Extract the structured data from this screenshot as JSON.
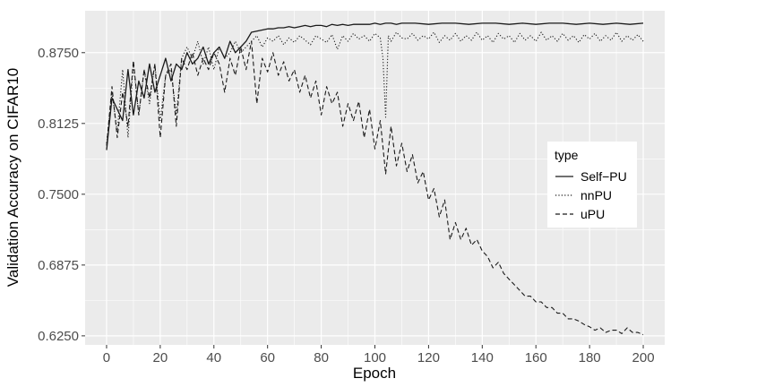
{
  "chart_data": {
    "type": "line",
    "xlabel": "Epoch",
    "ylabel": "Validation Accuracy on CIFAR10",
    "xlim": [
      -8,
      208
    ],
    "ylim": [
      0.617,
      0.912
    ],
    "x_ticks": [
      0,
      20,
      40,
      60,
      80,
      100,
      120,
      140,
      160,
      180,
      200
    ],
    "y_ticks": [
      0.625,
      0.6875,
      0.75,
      0.8125,
      0.875
    ],
    "y_tick_labels": [
      "0.6250",
      "0.6875",
      "0.7500",
      "0.8125",
      "0.8750"
    ],
    "grid": true,
    "legend": {
      "title": "type",
      "position": "right"
    },
    "series": [
      {
        "name": "Self−PU",
        "dash": "solid",
        "x": [
          0,
          2,
          4,
          6,
          8,
          10,
          12,
          14,
          16,
          18,
          20,
          22,
          24,
          26,
          28,
          30,
          32,
          34,
          36,
          38,
          40,
          42,
          44,
          46,
          48,
          50,
          52,
          54,
          56,
          58,
          60,
          62,
          64,
          66,
          68,
          70,
          72,
          74,
          76,
          78,
          80,
          82,
          84,
          86,
          88,
          90,
          92,
          94,
          96,
          98,
          100,
          102,
          104,
          106,
          108,
          110,
          115,
          120,
          125,
          130,
          135,
          140,
          145,
          150,
          155,
          160,
          165,
          170,
          175,
          180,
          185,
          190,
          195,
          200
        ],
        "y": [
          0.789,
          0.835,
          0.825,
          0.815,
          0.86,
          0.82,
          0.85,
          0.835,
          0.865,
          0.84,
          0.855,
          0.87,
          0.85,
          0.865,
          0.86,
          0.875,
          0.865,
          0.87,
          0.88,
          0.865,
          0.875,
          0.88,
          0.87,
          0.885,
          0.875,
          0.88,
          0.885,
          0.893,
          0.894,
          0.895,
          0.896,
          0.896,
          0.897,
          0.897,
          0.898,
          0.897,
          0.898,
          0.899,
          0.898,
          0.899,
          0.899,
          0.898,
          0.9,
          0.899,
          0.9,
          0.899,
          0.9,
          0.9,
          0.9,
          0.9,
          0.901,
          0.9,
          0.901,
          0.901,
          0.9,
          0.901,
          0.901,
          0.9,
          0.901,
          0.901,
          0.9,
          0.901,
          0.901,
          0.9,
          0.901,
          0.9,
          0.901,
          0.901,
          0.9,
          0.901,
          0.9,
          0.901,
          0.9,
          0.901
        ]
      },
      {
        "name": "nnPU",
        "dash": "dotted",
        "x": [
          0,
          2,
          4,
          6,
          8,
          10,
          12,
          14,
          16,
          18,
          20,
          22,
          24,
          26,
          28,
          30,
          32,
          34,
          36,
          38,
          40,
          42,
          44,
          46,
          48,
          50,
          52,
          54,
          56,
          58,
          60,
          62,
          64,
          66,
          68,
          70,
          72,
          74,
          76,
          78,
          80,
          82,
          84,
          86,
          88,
          90,
          92,
          94,
          96,
          98,
          100,
          102,
          103,
          104,
          105,
          106,
          108,
          110,
          112,
          114,
          116,
          118,
          120,
          122,
          124,
          126,
          128,
          130,
          132,
          134,
          136,
          138,
          140,
          142,
          144,
          146,
          148,
          150,
          152,
          154,
          156,
          158,
          160,
          162,
          164,
          166,
          168,
          170,
          172,
          174,
          176,
          178,
          180,
          182,
          184,
          186,
          188,
          190,
          192,
          194,
          196,
          198,
          200
        ],
        "y": [
          0.795,
          0.84,
          0.805,
          0.86,
          0.8,
          0.865,
          0.82,
          0.86,
          0.83,
          0.865,
          0.815,
          0.855,
          0.86,
          0.82,
          0.87,
          0.88,
          0.87,
          0.885,
          0.865,
          0.88,
          0.86,
          0.88,
          0.87,
          0.875,
          0.885,
          0.875,
          0.88,
          0.885,
          0.89,
          0.88,
          0.888,
          0.885,
          0.89,
          0.882,
          0.888,
          0.884,
          0.89,
          0.886,
          0.882,
          0.89,
          0.887,
          0.884,
          0.891,
          0.878,
          0.89,
          0.885,
          0.892,
          0.887,
          0.89,
          0.885,
          0.892,
          0.888,
          0.87,
          0.818,
          0.89,
          0.885,
          0.893,
          0.888,
          0.887,
          0.892,
          0.886,
          0.89,
          0.887,
          0.893,
          0.884,
          0.89,
          0.886,
          0.892,
          0.885,
          0.89,
          0.886,
          0.893,
          0.886,
          0.89,
          0.884,
          0.892,
          0.887,
          0.89,
          0.884,
          0.892,
          0.886,
          0.89,
          0.885,
          0.893,
          0.886,
          0.89,
          0.885,
          0.892,
          0.886,
          0.89,
          0.884,
          0.891,
          0.887,
          0.892,
          0.885,
          0.89,
          0.886,
          0.893,
          0.885,
          0.89,
          0.886,
          0.891,
          0.885
        ]
      },
      {
        "name": "uPU",
        "dash": "dashed",
        "x": [
          0,
          2,
          4,
          6,
          8,
          10,
          12,
          14,
          16,
          18,
          20,
          22,
          24,
          26,
          28,
          30,
          32,
          34,
          36,
          38,
          40,
          42,
          44,
          46,
          48,
          50,
          52,
          54,
          56,
          58,
          60,
          62,
          64,
          66,
          68,
          70,
          72,
          74,
          76,
          78,
          80,
          82,
          84,
          86,
          88,
          90,
          92,
          94,
          96,
          98,
          100,
          102,
          104,
          106,
          108,
          110,
          112,
          114,
          116,
          118,
          120,
          122,
          124,
          126,
          128,
          130,
          132,
          134,
          136,
          138,
          140,
          142,
          144,
          146,
          148,
          150,
          152,
          154,
          156,
          158,
          160,
          162,
          164,
          166,
          168,
          170,
          172,
          174,
          176,
          178,
          180,
          182,
          184,
          186,
          188,
          190,
          192,
          194,
          196,
          198,
          200
        ],
        "y": [
          0.793,
          0.845,
          0.8,
          0.84,
          0.81,
          0.868,
          0.82,
          0.86,
          0.835,
          0.865,
          0.8,
          0.855,
          0.865,
          0.81,
          0.87,
          0.86,
          0.875,
          0.855,
          0.87,
          0.86,
          0.875,
          0.865,
          0.84,
          0.87,
          0.855,
          0.88,
          0.86,
          0.885,
          0.83,
          0.87,
          0.858,
          0.875,
          0.855,
          0.867,
          0.85,
          0.86,
          0.84,
          0.855,
          0.835,
          0.85,
          0.82,
          0.845,
          0.83,
          0.84,
          0.81,
          0.83,
          0.815,
          0.832,
          0.8,
          0.825,
          0.79,
          0.815,
          0.768,
          0.81,
          0.775,
          0.795,
          0.77,
          0.785,
          0.76,
          0.77,
          0.745,
          0.755,
          0.73,
          0.745,
          0.71,
          0.725,
          0.71,
          0.72,
          0.705,
          0.71,
          0.7,
          0.695,
          0.685,
          0.69,
          0.68,
          0.675,
          0.67,
          0.665,
          0.66,
          0.66,
          0.655,
          0.655,
          0.65,
          0.65,
          0.645,
          0.645,
          0.64,
          0.64,
          0.638,
          0.635,
          0.633,
          0.63,
          0.632,
          0.628,
          0.63,
          0.63,
          0.627,
          0.632,
          0.628,
          0.628,
          0.626
        ]
      }
    ]
  }
}
